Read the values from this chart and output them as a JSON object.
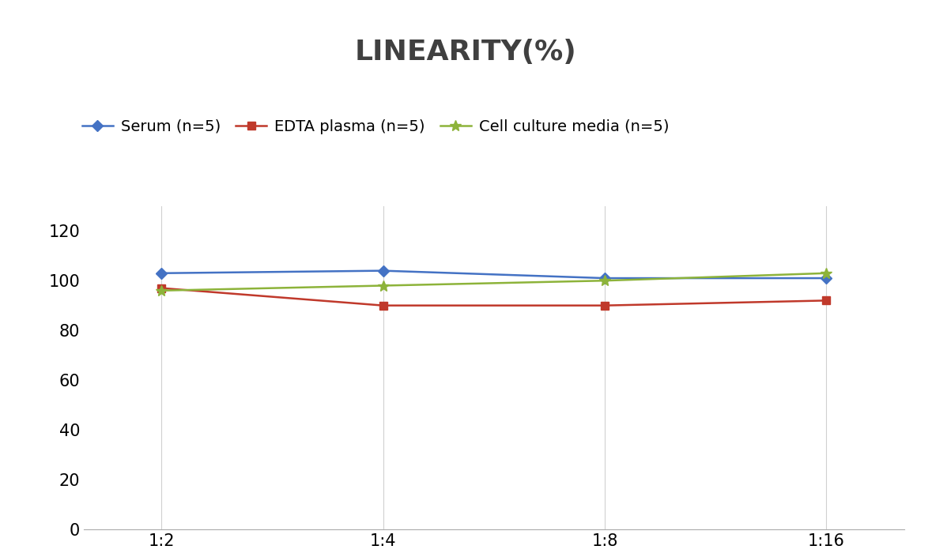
{
  "title": "LINEARITY(%)",
  "x_labels": [
    "1:2",
    "1:4",
    "1:8",
    "1:16"
  ],
  "x_positions": [
    0,
    1,
    2,
    3
  ],
  "series": [
    {
      "label": "Serum (n=5)",
      "values": [
        103,
        104,
        101,
        101
      ],
      "color": "#4472C4",
      "marker": "D",
      "marker_size": 7,
      "linewidth": 1.8
    },
    {
      "label": "EDTA plasma (n=5)",
      "values": [
        97,
        90,
        90,
        92
      ],
      "color": "#C0392B",
      "marker": "s",
      "marker_size": 7,
      "linewidth": 1.8
    },
    {
      "label": "Cell culture media (n=5)",
      "values": [
        96,
        98,
        100,
        103
      ],
      "color": "#8DB33A",
      "marker": "*",
      "marker_size": 10,
      "linewidth": 1.8
    }
  ],
  "ylim": [
    0,
    130
  ],
  "yticks": [
    0,
    20,
    40,
    60,
    80,
    100,
    120
  ],
  "title_fontsize": 26,
  "tick_fontsize": 15,
  "legend_fontsize": 14,
  "background_color": "#ffffff",
  "grid_color": "#d0d0d0",
  "spine_color": "#aaaaaa"
}
